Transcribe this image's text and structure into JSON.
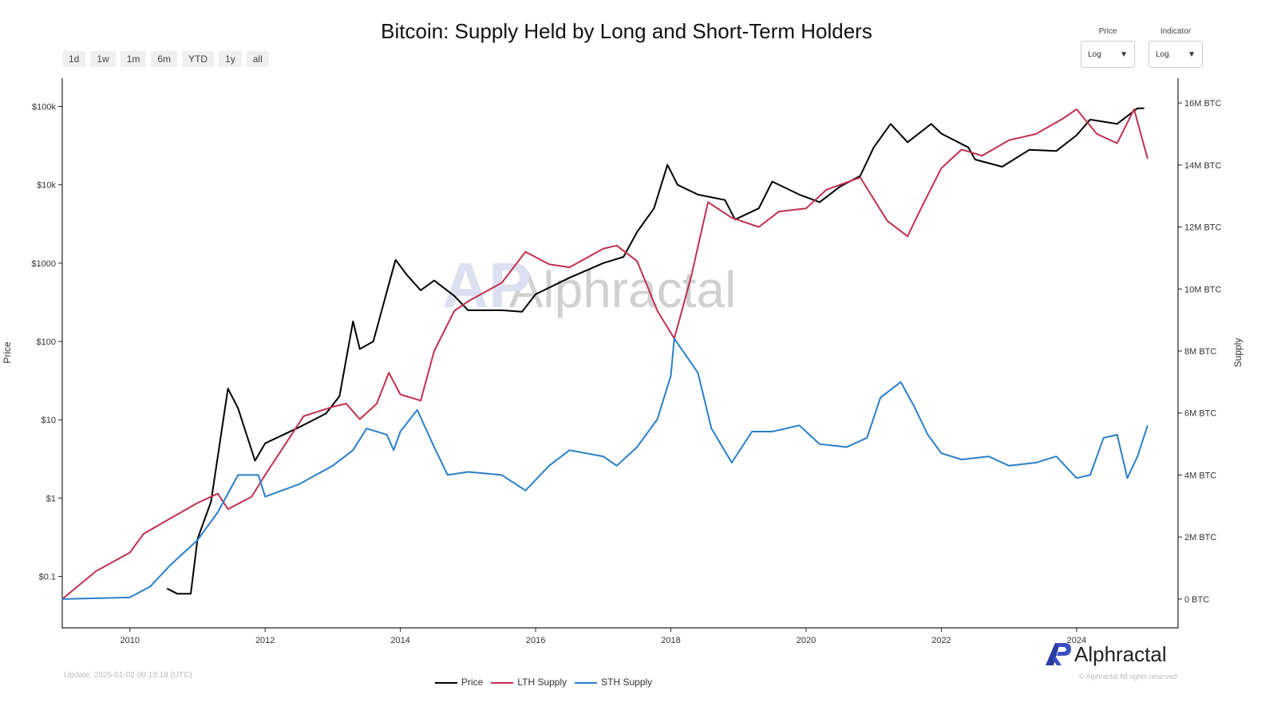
{
  "range_buttons": [
    "1d",
    "1w",
    "1m",
    "6m",
    "YTD",
    "1y",
    "all"
  ],
  "selectors": [
    {
      "label": "Price",
      "value": "Log"
    },
    {
      "label": "Indicator",
      "value": "Log"
    }
  ],
  "update_text": "Update: 2025-01-02 00:13:18 (UTC)",
  "brand": {
    "name": "Alphractal",
    "copyright": "© Alphractal All rights reserved",
    "watermark": "Alphractal",
    "color": "#2b3a9e"
  },
  "chart_data": {
    "type": "line",
    "title": "Bitcoin: Supply Held by Long and Short-Term Holders",
    "xlabel": "",
    "ylabel_left": "Price",
    "ylabel_right": "Supply",
    "xlim": [
      2009.0,
      2025.5
    ],
    "ylim_left": [
      0.022,
      230000
    ],
    "ylim_right": [
      -930000,
      16800000
    ],
    "left_scale": "log",
    "grid": false,
    "legend_position": "bottom-center",
    "x_ticks": [
      "2010",
      "2012",
      "2014",
      "2016",
      "2018",
      "2020",
      "2022",
      "2024"
    ],
    "left_ticks": [
      {
        "v": 0.1,
        "label": "$0.1"
      },
      {
        "v": 1,
        "label": "$1"
      },
      {
        "v": 10,
        "label": "$10"
      },
      {
        "v": 100,
        "label": "$100"
      },
      {
        "v": 1000,
        "label": "$1000"
      },
      {
        "v": 10000,
        "label": "$10k"
      },
      {
        "v": 100000,
        "label": "$100k"
      }
    ],
    "right_ticks": [
      {
        "v": 0,
        "label": "0 BTC"
      },
      {
        "v": 2000000,
        "label": "2M BTC"
      },
      {
        "v": 4000000,
        "label": "4M BTC"
      },
      {
        "v": 6000000,
        "label": "6M BTC"
      },
      {
        "v": 8000000,
        "label": "8M BTC"
      },
      {
        "v": 10000000,
        "label": "10M BTC"
      },
      {
        "v": 12000000,
        "label": "12M BTC"
      },
      {
        "v": 14000000,
        "label": "14M BTC"
      },
      {
        "v": 16000000,
        "label": "16M BTC"
      }
    ],
    "series": [
      {
        "name": "Price",
        "axis": "left",
        "color": "#000000",
        "points": [
          [
            2010.55,
            0.07
          ],
          [
            2010.7,
            0.06
          ],
          [
            2010.9,
            0.06
          ],
          [
            2011.0,
            0.3
          ],
          [
            2011.2,
            0.9
          ],
          [
            2011.45,
            25
          ],
          [
            2011.6,
            14
          ],
          [
            2011.85,
            3
          ],
          [
            2012.0,
            5
          ],
          [
            2012.5,
            8
          ],
          [
            2012.9,
            12
          ],
          [
            2013.1,
            20
          ],
          [
            2013.3,
            180
          ],
          [
            2013.4,
            80
          ],
          [
            2013.6,
            100
          ],
          [
            2013.9,
            900
          ],
          [
            2013.93,
            1100
          ],
          [
            2014.1,
            700
          ],
          [
            2014.3,
            450
          ],
          [
            2014.5,
            600
          ],
          [
            2014.8,
            380
          ],
          [
            2015.0,
            250
          ],
          [
            2015.5,
            250
          ],
          [
            2015.8,
            240
          ],
          [
            2016.0,
            400
          ],
          [
            2016.5,
            650
          ],
          [
            2017.0,
            1000
          ],
          [
            2017.3,
            1200
          ],
          [
            2017.5,
            2500
          ],
          [
            2017.75,
            5000
          ],
          [
            2017.95,
            18000
          ],
          [
            2018.1,
            10000
          ],
          [
            2018.4,
            7500
          ],
          [
            2018.8,
            6400
          ],
          [
            2018.95,
            3600
          ],
          [
            2019.3,
            5000
          ],
          [
            2019.5,
            11000
          ],
          [
            2019.9,
            7500
          ],
          [
            2020.2,
            6000
          ],
          [
            2020.5,
            9500
          ],
          [
            2020.8,
            13000
          ],
          [
            2021.0,
            30000
          ],
          [
            2021.25,
            60000
          ],
          [
            2021.5,
            35000
          ],
          [
            2021.85,
            60000
          ],
          [
            2022.0,
            45000
          ],
          [
            2022.4,
            30000
          ],
          [
            2022.5,
            21000
          ],
          [
            2022.9,
            17000
          ],
          [
            2023.3,
            28000
          ],
          [
            2023.7,
            27000
          ],
          [
            2024.0,
            43000
          ],
          [
            2024.2,
            68000
          ],
          [
            2024.6,
            60000
          ],
          [
            2024.9,
            95000
          ],
          [
            2025.0,
            95000
          ]
        ]
      },
      {
        "name": "LTH Supply",
        "axis": "right",
        "color": "#c0304f",
        "points": [
          [
            2009.0,
            0
          ],
          [
            2009.5,
            900000
          ],
          [
            2010.0,
            1500000
          ],
          [
            2010.2,
            2100000
          ],
          [
            2010.6,
            2600000
          ],
          [
            2011.0,
            3100000
          ],
          [
            2011.3,
            3400000
          ],
          [
            2011.45,
            2900000
          ],
          [
            2011.8,
            3300000
          ],
          [
            2012.0,
            4000000
          ],
          [
            2012.57,
            5900000
          ],
          [
            2013.0,
            6200000
          ],
          [
            2013.2,
            6300000
          ],
          [
            2013.4,
            5800000
          ],
          [
            2013.65,
            6300000
          ],
          [
            2013.83,
            7300000
          ],
          [
            2014.0,
            6600000
          ],
          [
            2014.3,
            6400000
          ],
          [
            2014.5,
            8000000
          ],
          [
            2014.8,
            9300000
          ],
          [
            2015.0,
            9600000
          ],
          [
            2015.5,
            10200000
          ],
          [
            2015.85,
            11200000
          ],
          [
            2016.2,
            10800000
          ],
          [
            2016.5,
            10700000
          ],
          [
            2017.0,
            11300000
          ],
          [
            2017.2,
            11400000
          ],
          [
            2017.5,
            10900000
          ],
          [
            2017.8,
            9300000
          ],
          [
            2018.05,
            8400000
          ],
          [
            2018.3,
            10400000
          ],
          [
            2018.55,
            12800000
          ],
          [
            2018.9,
            12300000
          ],
          [
            2019.3,
            12000000
          ],
          [
            2019.6,
            12500000
          ],
          [
            2020.0,
            12600000
          ],
          [
            2020.3,
            13200000
          ],
          [
            2020.8,
            13600000
          ],
          [
            2021.2,
            12200000
          ],
          [
            2021.5,
            11700000
          ],
          [
            2021.7,
            12600000
          ],
          [
            2022.0,
            13900000
          ],
          [
            2022.3,
            14500000
          ],
          [
            2022.6,
            14300000
          ],
          [
            2023.0,
            14800000
          ],
          [
            2023.4,
            15000000
          ],
          [
            2023.8,
            15500000
          ],
          [
            2024.0,
            15800000
          ],
          [
            2024.3,
            15000000
          ],
          [
            2024.6,
            14700000
          ],
          [
            2024.85,
            15800000
          ],
          [
            2025.05,
            14200000
          ]
        ]
      },
      {
        "name": "STH Supply",
        "axis": "right",
        "color": "#2a7fc9",
        "points": [
          [
            2009.0,
            0
          ],
          [
            2010.0,
            50000
          ],
          [
            2010.3,
            400000
          ],
          [
            2010.6,
            1100000
          ],
          [
            2011.0,
            1900000
          ],
          [
            2011.3,
            2800000
          ],
          [
            2011.6,
            4000000
          ],
          [
            2011.9,
            4000000
          ],
          [
            2012.0,
            3300000
          ],
          [
            2012.5,
            3700000
          ],
          [
            2013.0,
            4300000
          ],
          [
            2013.3,
            4800000
          ],
          [
            2013.5,
            5500000
          ],
          [
            2013.8,
            5300000
          ],
          [
            2013.9,
            4800000
          ],
          [
            2014.0,
            5400000
          ],
          [
            2014.25,
            6100000
          ],
          [
            2014.5,
            4900000
          ],
          [
            2014.7,
            4000000
          ],
          [
            2015.0,
            4100000
          ],
          [
            2015.5,
            4000000
          ],
          [
            2015.85,
            3500000
          ],
          [
            2016.2,
            4300000
          ],
          [
            2016.5,
            4800000
          ],
          [
            2017.0,
            4600000
          ],
          [
            2017.2,
            4300000
          ],
          [
            2017.5,
            4900000
          ],
          [
            2017.8,
            5800000
          ],
          [
            2018.0,
            7200000
          ],
          [
            2018.05,
            8400000
          ],
          [
            2018.4,
            7300000
          ],
          [
            2018.6,
            5500000
          ],
          [
            2018.9,
            4400000
          ],
          [
            2019.2,
            5400000
          ],
          [
            2019.5,
            5400000
          ],
          [
            2019.9,
            5600000
          ],
          [
            2020.2,
            5000000
          ],
          [
            2020.6,
            4900000
          ],
          [
            2020.9,
            5200000
          ],
          [
            2021.1,
            6500000
          ],
          [
            2021.4,
            7000000
          ],
          [
            2021.6,
            6200000
          ],
          [
            2021.8,
            5300000
          ],
          [
            2022.0,
            4700000
          ],
          [
            2022.3,
            4500000
          ],
          [
            2022.7,
            4600000
          ],
          [
            2023.0,
            4300000
          ],
          [
            2023.4,
            4400000
          ],
          [
            2023.7,
            4600000
          ],
          [
            2024.0,
            3900000
          ],
          [
            2024.2,
            4000000
          ],
          [
            2024.4,
            5200000
          ],
          [
            2024.6,
            5300000
          ],
          [
            2024.75,
            3900000
          ],
          [
            2024.9,
            4600000
          ],
          [
            2025.05,
            5600000
          ]
        ]
      }
    ]
  }
}
